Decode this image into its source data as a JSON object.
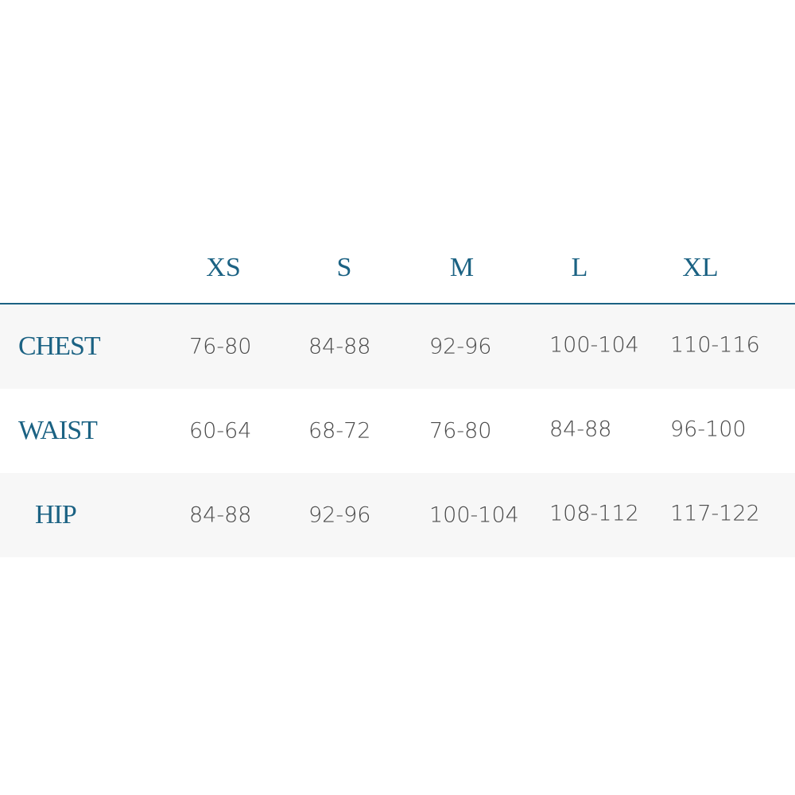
{
  "sizes": [
    "XS",
    "S",
    "M",
    "L",
    "XL"
  ],
  "rows": [
    {
      "label": "CHEST",
      "values": [
        "76-80",
        "84-88",
        "92-96",
        "100-104",
        "110-116"
      ]
    },
    {
      "label": "WAIST",
      "values": [
        "60-64",
        "68-72",
        "76-80",
        "84-88",
        "96-100"
      ]
    },
    {
      "label": "HIP",
      "values": [
        "84-88",
        "92-96",
        "100-104",
        "108-112",
        "117-122"
      ]
    }
  ],
  "colors": {
    "accent": "#1b6283",
    "text": "#4a4a4a",
    "row_shade": "#f7f7f7"
  }
}
